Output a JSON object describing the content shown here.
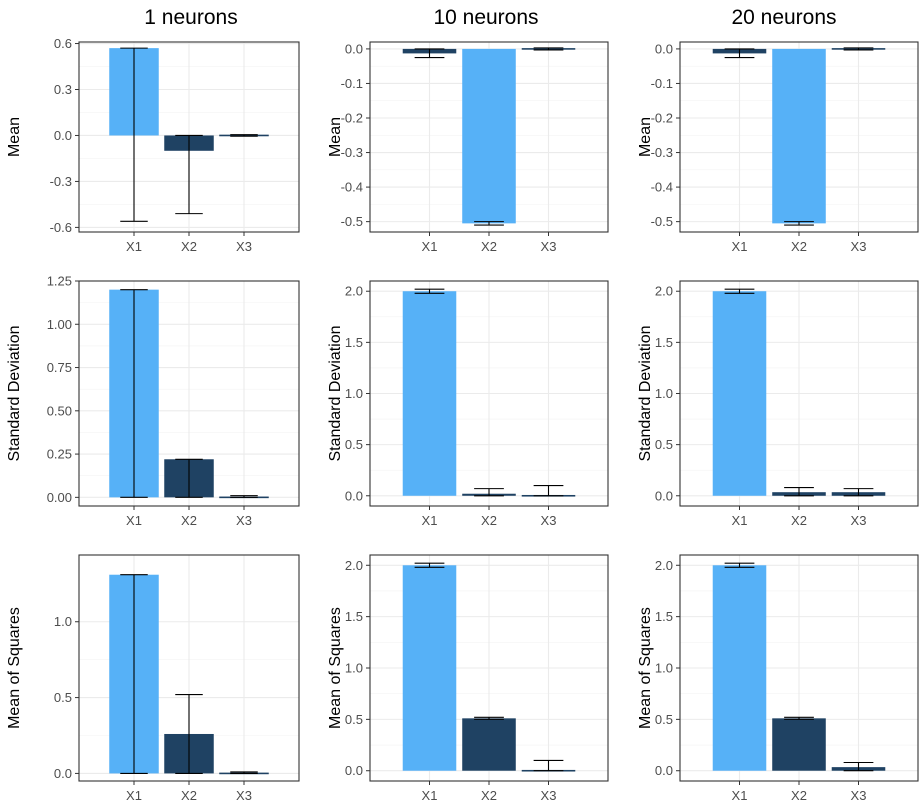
{
  "colors": {
    "light_bar": "#56b1f7",
    "dark_bar": "#1f4263",
    "panel_border": "#333333",
    "grid": "#ebebeb",
    "tick_text": "#4d4d4d"
  },
  "column_titles": [
    "1 neurons",
    "10 neurons",
    "20 neurons"
  ],
  "chart_data": [
    {
      "type": "bar",
      "panel": "row1-col1",
      "title": "1 neurons",
      "ylabel": "Mean",
      "xlabel": "",
      "categories": [
        "X1",
        "X2",
        "X3"
      ],
      "values": [
        0.57,
        -0.1,
        0.0
      ],
      "error_low": [
        -0.56,
        -0.51,
        -0.005
      ],
      "error_high": [
        0.57,
        0.0,
        0.005
      ],
      "bar_shade": [
        "light",
        "dark",
        "dark"
      ],
      "ylim": [
        -0.63,
        0.61
      ],
      "yticks": [
        -0.6,
        -0.3,
        0.0,
        0.3,
        0.6
      ],
      "ytick_labels": [
        "-0.6",
        "-0.3",
        "0.0",
        "0.3",
        "0.6"
      ],
      "grid": true
    },
    {
      "type": "bar",
      "panel": "row1-col2",
      "title": "10 neurons",
      "ylabel": "Mean",
      "xlabel": "",
      "categories": [
        "X1",
        "X2",
        "X3"
      ],
      "values": [
        -0.013,
        -0.505,
        0.0
      ],
      "error_low": [
        -0.025,
        -0.51,
        -0.003
      ],
      "error_high": [
        0.0,
        -0.5,
        0.003
      ],
      "bar_shade": [
        "dark",
        "light",
        "dark"
      ],
      "ylim": [
        -0.53,
        0.02
      ],
      "yticks": [
        -0.5,
        -0.4,
        -0.3,
        -0.2,
        -0.1,
        0.0
      ],
      "ytick_labels": [
        "-0.5",
        "-0.4",
        "-0.3",
        "-0.2",
        "-0.1",
        "0.0"
      ],
      "grid": true
    },
    {
      "type": "bar",
      "panel": "row1-col3",
      "title": "20 neurons",
      "ylabel": "Mean",
      "xlabel": "",
      "categories": [
        "X1",
        "X2",
        "X3"
      ],
      "values": [
        -0.013,
        -0.505,
        0.0
      ],
      "error_low": [
        -0.025,
        -0.51,
        -0.003
      ],
      "error_high": [
        0.0,
        -0.5,
        0.003
      ],
      "bar_shade": [
        "dark",
        "light",
        "dark"
      ],
      "ylim": [
        -0.53,
        0.02
      ],
      "yticks": [
        -0.5,
        -0.4,
        -0.3,
        -0.2,
        -0.1,
        0.0
      ],
      "ytick_labels": [
        "-0.5",
        "-0.4",
        "-0.3",
        "-0.2",
        "-0.1",
        "0.0"
      ],
      "grid": true
    },
    {
      "type": "bar",
      "panel": "row2-col1",
      "title": "",
      "ylabel": "Standard Deviation",
      "xlabel": "",
      "categories": [
        "X1",
        "X2",
        "X3"
      ],
      "values": [
        1.2,
        0.22,
        0.005
      ],
      "error_low": [
        0.0,
        0.0,
        0.0
      ],
      "error_high": [
        1.2,
        0.22,
        0.01
      ],
      "bar_shade": [
        "light",
        "dark",
        "dark"
      ],
      "ylim": [
        -0.05,
        1.25
      ],
      "yticks": [
        0.0,
        0.25,
        0.5,
        0.75,
        1.0,
        1.25
      ],
      "ytick_labels": [
        "0.00",
        "0.25",
        "0.50",
        "0.75",
        "1.00",
        "1.25"
      ],
      "grid": true
    },
    {
      "type": "bar",
      "panel": "row2-col2",
      "title": "",
      "ylabel": "Standard Deviation",
      "xlabel": "",
      "categories": [
        "X1",
        "X2",
        "X3"
      ],
      "values": [
        2.0,
        0.02,
        0.01
      ],
      "error_low": [
        1.98,
        0.0,
        0.0
      ],
      "error_high": [
        2.02,
        0.07,
        0.1
      ],
      "bar_shade": [
        "light",
        "dark",
        "dark"
      ],
      "ylim": [
        -0.1,
        2.1
      ],
      "yticks": [
        0.0,
        0.5,
        1.0,
        1.5,
        2.0
      ],
      "ytick_labels": [
        "0.0",
        "0.5",
        "1.0",
        "1.5",
        "2.0"
      ],
      "grid": true
    },
    {
      "type": "bar",
      "panel": "row2-col3",
      "title": "",
      "ylabel": "Standard Deviation",
      "xlabel": "",
      "categories": [
        "X1",
        "X2",
        "X3"
      ],
      "values": [
        2.0,
        0.035,
        0.035
      ],
      "error_low": [
        1.98,
        0.0,
        0.0
      ],
      "error_high": [
        2.02,
        0.08,
        0.07
      ],
      "bar_shade": [
        "light",
        "dark",
        "dark"
      ],
      "ylim": [
        -0.1,
        2.1
      ],
      "yticks": [
        0.0,
        0.5,
        1.0,
        1.5,
        2.0
      ],
      "ytick_labels": [
        "0.0",
        "0.5",
        "1.0",
        "1.5",
        "2.0"
      ],
      "grid": true
    },
    {
      "type": "bar",
      "panel": "row3-col1",
      "title": "",
      "ylabel": "Mean of Squares",
      "xlabel": "",
      "categories": [
        "X1",
        "X2",
        "X3"
      ],
      "values": [
        1.31,
        0.26,
        0.005
      ],
      "error_low": [
        0.0,
        0.0,
        0.0
      ],
      "error_high": [
        1.31,
        0.52,
        0.01
      ],
      "bar_shade": [
        "light",
        "dark",
        "dark"
      ],
      "ylim": [
        -0.05,
        1.44
      ],
      "yticks": [
        0.0,
        0.5,
        1.0
      ],
      "ytick_labels": [
        "0.0",
        "0.5",
        "1.0"
      ],
      "grid": true
    },
    {
      "type": "bar",
      "panel": "row3-col2",
      "title": "",
      "ylabel": "Mean of Squares",
      "xlabel": "",
      "categories": [
        "X1",
        "X2",
        "X3"
      ],
      "values": [
        2.0,
        0.51,
        0.01
      ],
      "error_low": [
        1.98,
        0.5,
        0.0
      ],
      "error_high": [
        2.02,
        0.52,
        0.1
      ],
      "bar_shade": [
        "light",
        "dark",
        "dark"
      ],
      "ylim": [
        -0.1,
        2.1
      ],
      "yticks": [
        0.0,
        0.5,
        1.0,
        1.5,
        2.0
      ],
      "ytick_labels": [
        "0.0",
        "0.5",
        "1.0",
        "1.5",
        "2.0"
      ],
      "grid": true
    },
    {
      "type": "bar",
      "panel": "row3-col3",
      "title": "",
      "ylabel": "Mean of Squares",
      "xlabel": "",
      "categories": [
        "X1",
        "X2",
        "X3"
      ],
      "values": [
        2.0,
        0.51,
        0.035
      ],
      "error_low": [
        1.98,
        0.5,
        0.0
      ],
      "error_high": [
        2.02,
        0.52,
        0.08
      ],
      "bar_shade": [
        "light",
        "dark",
        "dark"
      ],
      "ylim": [
        -0.1,
        2.1
      ],
      "yticks": [
        0.0,
        0.5,
        1.0,
        1.5,
        2.0
      ],
      "ytick_labels": [
        "0.0",
        "0.5",
        "1.0",
        "1.5",
        "2.0"
      ],
      "grid": true
    }
  ]
}
